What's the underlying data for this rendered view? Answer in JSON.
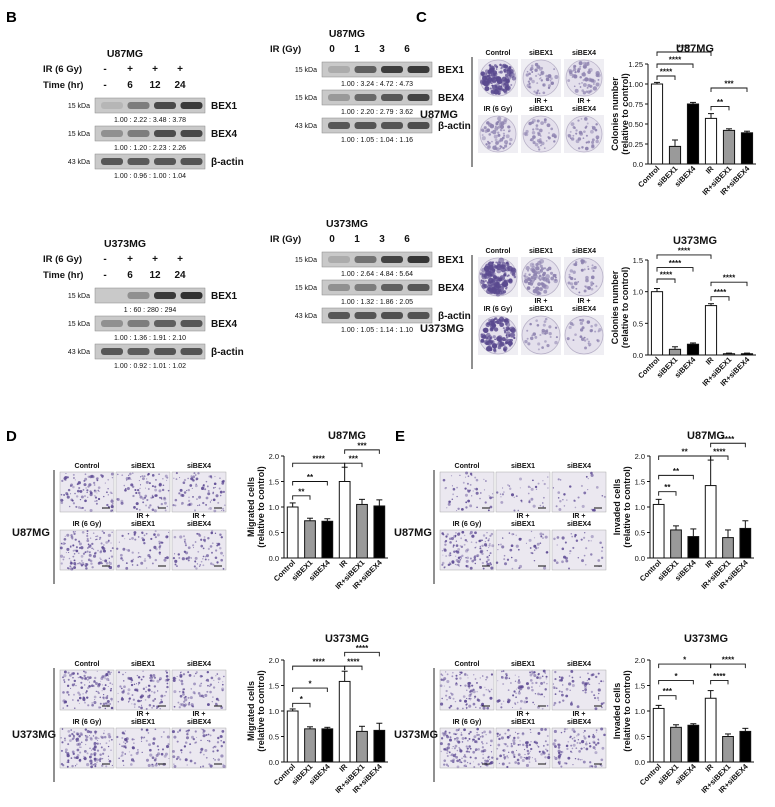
{
  "panel_labels": [
    "B",
    "C",
    "D",
    "E"
  ],
  "blot_panels": [
    {
      "title": "U87MG",
      "row1_label": "IR (6 Gy)",
      "row1_values": [
        "-",
        "+",
        "+",
        "+"
      ],
      "row2_label": "Time (hr)",
      "row2_values": [
        "-",
        "6",
        "12",
        "24"
      ],
      "bands": [
        {
          "kda": "15 kDa",
          "name": "BEX1",
          "quant": "1.00 : 2.22 : 3.48 : 3.78",
          "intensity": [
            0.15,
            0.45,
            0.72,
            0.8
          ]
        },
        {
          "kda": "15 kDa",
          "name": "BEX4",
          "quant": "1.00 : 1.20 : 2.23 : 2.26",
          "intensity": [
            0.35,
            0.45,
            0.7,
            0.72
          ]
        },
        {
          "kda": "43 kDa",
          "name": "β-actin",
          "quant": "1.00 : 0.96 : 1.00 : 1.04",
          "intensity": [
            0.65,
            0.63,
            0.65,
            0.66
          ]
        }
      ]
    },
    {
      "title": "U87MG",
      "row1_label": "IR (Gy)",
      "row1_values": [
        "0",
        "1",
        "3",
        "6"
      ],
      "bands": [
        {
          "kda": "15 kDa",
          "name": "BEX1",
          "quant": "1.00 : 3.24 : 4.72 : 4.73",
          "intensity": [
            0.2,
            0.6,
            0.78,
            0.8
          ]
        },
        {
          "kda": "15 kDa",
          "name": "BEX4",
          "quant": "1.00 : 2.20 : 2.79 : 3.62",
          "intensity": [
            0.3,
            0.55,
            0.65,
            0.75
          ]
        },
        {
          "kda": "43 kDa",
          "name": "β-actin",
          "quant": "1.00 : 1.05 : 1.04 : 1.16",
          "intensity": [
            0.65,
            0.66,
            0.66,
            0.7
          ]
        }
      ]
    },
    {
      "title": "U373MG",
      "row1_label": "IR (6 Gy)",
      "row1_values": [
        "-",
        "+",
        "+",
        "+"
      ],
      "row2_label": "Time (hr)",
      "row2_values": [
        "-",
        "6",
        "12",
        "24"
      ],
      "bands": [
        {
          "kda": "15 kDa",
          "name": "BEX1",
          "quant": "1   :   60  :  280  :  294",
          "intensity": [
            0.05,
            0.35,
            0.8,
            0.85
          ]
        },
        {
          "kda": "15 kDa",
          "name": "BEX4",
          "quant": "1.00 : 1.36 : 1.91 : 2.10",
          "intensity": [
            0.35,
            0.45,
            0.6,
            0.65
          ]
        },
        {
          "kda": "43 kDa",
          "name": "β-actin",
          "quant": "1.00 : 0.92 : 1.01 : 1.02",
          "intensity": [
            0.65,
            0.62,
            0.66,
            0.66
          ]
        }
      ]
    },
    {
      "title": "U373MG",
      "row1_label": "IR (Gy)",
      "row1_values": [
        "0",
        "1",
        "3",
        "6"
      ],
      "bands": [
        {
          "kda": "15 kDa",
          "name": "BEX1",
          "quant": "1.00 : 2.64 : 4.84 : 5.64",
          "intensity": [
            0.2,
            0.5,
            0.75,
            0.82
          ]
        },
        {
          "kda": "15 kDa",
          "name": "BEX4",
          "quant": "1.00 : 1.32 : 1.86 : 2.05",
          "intensity": [
            0.35,
            0.45,
            0.6,
            0.65
          ]
        },
        {
          "kda": "43 kDa",
          "name": "β-actin",
          "quant": "1.00 : 1.05 : 1.14 : 1.10",
          "intensity": [
            0.65,
            0.66,
            0.68,
            0.67
          ]
        }
      ]
    }
  ],
  "image_grids": [
    {
      "row_label": "U87MG",
      "labels_top": [
        "Control",
        "siBEX1",
        "siBEX4"
      ],
      "labels_bottom": [
        "IR (6 Gy)",
        "IR +\nsiBEX1",
        "IR +\nsiBEX4"
      ],
      "kind": "colony",
      "density": [
        0.9,
        0.25,
        0.4,
        0.4,
        0.22,
        0.2
      ]
    },
    {
      "row_label": "U373MG",
      "labels_top": [
        "Control",
        "siBEX1",
        "siBEX4"
      ],
      "labels_bottom": [
        "IR (6 Gy)",
        "IR +\nsiBEX1",
        "IR +\nsiBEX4"
      ],
      "kind": "colony",
      "density": [
        0.9,
        0.5,
        0.2,
        0.75,
        0.12,
        0.1
      ]
    },
    {
      "row_label": "U87MG",
      "labels_top": [
        "Control",
        "siBEX1",
        "siBEX4"
      ],
      "labels_bottom": [
        "IR (6 Gy)",
        "IR +\nsiBEX1",
        "IR +\nsiBEX4"
      ],
      "kind": "cells",
      "density": [
        0.55,
        0.45,
        0.45,
        0.75,
        0.35,
        0.4
      ]
    },
    {
      "row_label": "U373MG",
      "labels_top": [
        "Control",
        "siBEX1",
        "siBEX4"
      ],
      "labels_bottom": [
        "IR (6 Gy)",
        "IR +\nsiBEX1",
        "IR +\nsiBEX4"
      ],
      "kind": "cells",
      "density": [
        0.7,
        0.55,
        0.45,
        0.8,
        0.4,
        0.4
      ]
    },
    {
      "row_label": "U87MG",
      "labels_top": [
        "Control",
        "siBEX1",
        "siBEX4"
      ],
      "labels_bottom": [
        "IR (6 Gy)",
        "IR +\nsiBEX1",
        "IR +\nsiBEX4"
      ],
      "kind": "cells",
      "density": [
        0.25,
        0.15,
        0.1,
        0.7,
        0.2,
        0.15
      ]
    },
    {
      "row_label": "U373MG",
      "labels_top": [
        "Control",
        "siBEX1",
        "siBEX4"
      ],
      "labels_bottom": [
        "IR (6 Gy)",
        "IR +\nsiBEX1",
        "IR +\nsiBEX4"
      ],
      "kind": "cells",
      "density": [
        0.55,
        0.45,
        0.3,
        0.85,
        0.55,
        0.5
      ]
    }
  ],
  "chart_data": [
    {
      "type": "bar",
      "title": "U87MG",
      "ylabel": "Colonies number\n(relative to control)",
      "ylim": [
        0,
        1.25
      ],
      "yticks": [
        "0.0",
        "0.25",
        "0.50",
        "0.75",
        "1.00",
        "1.25"
      ],
      "ytick_values": [
        0,
        0.25,
        0.5,
        0.75,
        1.0,
        1.25
      ],
      "categories": [
        "Control",
        "siBEX1",
        "siBEX4",
        "IR",
        "IR+siBEX1",
        "IR+siBEX4"
      ],
      "values": [
        1.0,
        0.22,
        0.75,
        0.57,
        0.42,
        0.39
      ],
      "errors": [
        0.02,
        0.08,
        0.02,
        0.06,
        0.02,
        0.02
      ],
      "fills": [
        "#ffffff",
        "#9a9a9a",
        "#000000",
        "#ffffff",
        "#9a9a9a",
        "#000000"
      ],
      "significance": [
        {
          "from": 0,
          "to": 1,
          "label": "****",
          "y": 1.1
        },
        {
          "from": 0,
          "to": 2,
          "label": "****",
          "y": 1.25
        },
        {
          "from": 0,
          "to": 3,
          "label": "****",
          "y": 1.4
        },
        {
          "from": 3,
          "to": 4,
          "label": "**",
          "y": 0.72
        },
        {
          "from": 3,
          "to": 5,
          "label": "***",
          "y": 0.95
        }
      ]
    },
    {
      "type": "bar",
      "title": "U373MG",
      "ylabel": "Colonies number\n(relative to control)",
      "ylim": [
        0,
        1.5
      ],
      "yticks": [
        "0.0",
        "0.5",
        "1.0",
        "1.5"
      ],
      "ytick_values": [
        0,
        0.5,
        1.0,
        1.5
      ],
      "categories": [
        "Control",
        "siBEX1",
        "siBEX4",
        "IR",
        "IR+siBEX1",
        "IR+siBEX4"
      ],
      "values": [
        1.0,
        0.09,
        0.17,
        0.78,
        0.02,
        0.02
      ],
      "errors": [
        0.05,
        0.04,
        0.02,
        0.03,
        0.01,
        0.01
      ],
      "fills": [
        "#ffffff",
        "#9a9a9a",
        "#000000",
        "#ffffff",
        "#9a9a9a",
        "#000000"
      ],
      "significance": [
        {
          "from": 0,
          "to": 1,
          "label": "****",
          "y": 1.2
        },
        {
          "from": 0,
          "to": 2,
          "label": "****",
          "y": 1.38
        },
        {
          "from": 0,
          "to": 3,
          "label": "****",
          "y": 1.58
        },
        {
          "from": 3,
          "to": 4,
          "label": "****",
          "y": 0.92
        },
        {
          "from": 3,
          "to": 5,
          "label": "****",
          "y": 1.15
        }
      ]
    },
    {
      "type": "bar",
      "title": "U87MG",
      "ylabel": "Migrated cells\n(relative to control)",
      "ylim": [
        0,
        2.0
      ],
      "yticks": [
        "0.0",
        "0.5",
        "1.0",
        "1.5",
        "2.0"
      ],
      "ytick_values": [
        0,
        0.5,
        1.0,
        1.5,
        2.0
      ],
      "categories": [
        "Control",
        "siBEX1",
        "siBEX4",
        "IR",
        "IR+siBEX1",
        "IR+siBEX4"
      ],
      "values": [
        1.0,
        0.73,
        0.72,
        1.5,
        1.05,
        1.02
      ],
      "errors": [
        0.08,
        0.05,
        0.05,
        0.28,
        0.1,
        0.12
      ],
      "fills": [
        "#ffffff",
        "#9a9a9a",
        "#000000",
        "#ffffff",
        "#9a9a9a",
        "#000000"
      ],
      "significance": [
        {
          "from": 0,
          "to": 1,
          "label": "**",
          "y": 1.22
        },
        {
          "from": 0,
          "to": 2,
          "label": "**",
          "y": 1.5
        },
        {
          "from": 0,
          "to": 3,
          "label": "****",
          "y": 1.86
        },
        {
          "from": 3,
          "to": 4,
          "label": "***",
          "y": 1.86
        },
        {
          "from": 3,
          "to": 5,
          "label": "***",
          "y": 2.12
        }
      ]
    },
    {
      "type": "bar",
      "title": "U373MG",
      "ylabel": "Migrated cells\n(relative to control)",
      "ylim": [
        0,
        2.0
      ],
      "yticks": [
        "0.0",
        "0.5",
        "1.0",
        "1.5",
        "2.0"
      ],
      "ytick_values": [
        0,
        0.5,
        1.0,
        1.5,
        2.0
      ],
      "categories": [
        "Control",
        "siBEX1",
        "siBEX4",
        "IR",
        "IR+siBEX1",
        "IR+siBEX4"
      ],
      "values": [
        1.0,
        0.65,
        0.65,
        1.58,
        0.6,
        0.62
      ],
      "errors": [
        0.04,
        0.04,
        0.03,
        0.2,
        0.1,
        0.14
      ],
      "fills": [
        "#ffffff",
        "#9a9a9a",
        "#000000",
        "#ffffff",
        "#9a9a9a",
        "#000000"
      ],
      "significance": [
        {
          "from": 0,
          "to": 1,
          "label": "*",
          "y": 1.15
        },
        {
          "from": 0,
          "to": 2,
          "label": "*",
          "y": 1.45
        },
        {
          "from": 0,
          "to": 3,
          "label": "****",
          "y": 1.88
        },
        {
          "from": 3,
          "to": 4,
          "label": "****",
          "y": 1.88
        },
        {
          "from": 3,
          "to": 5,
          "label": "****",
          "y": 2.15
        }
      ]
    },
    {
      "type": "bar",
      "title": "U87MG",
      "ylabel": "Invaded cells\n(relative to control)",
      "ylim": [
        0,
        2.0
      ],
      "yticks": [
        "0.0",
        "0.5",
        "1.0",
        "1.5",
        "2.0"
      ],
      "ytick_values": [
        0,
        0.5,
        1.0,
        1.5,
        2.0
      ],
      "categories": [
        "Control",
        "siBEX1",
        "siBEX4",
        "IR",
        "IR+siBEX1",
        "IR+siBEX4"
      ],
      "values": [
        1.05,
        0.55,
        0.42,
        1.42,
        0.4,
        0.58
      ],
      "errors": [
        0.1,
        0.08,
        0.15,
        0.5,
        0.15,
        0.15
      ],
      "fills": [
        "#ffffff",
        "#9a9a9a",
        "#000000",
        "#ffffff",
        "#9a9a9a",
        "#000000"
      ],
      "significance": [
        {
          "from": 0,
          "to": 1,
          "label": "**",
          "y": 1.3
        },
        {
          "from": 0,
          "to": 2,
          "label": "**",
          "y": 1.62
        },
        {
          "from": 0,
          "to": 3,
          "label": "**",
          "y": 2.0
        },
        {
          "from": 3,
          "to": 4,
          "label": "****",
          "y": 2.0
        },
        {
          "from": 3,
          "to": 5,
          "label": "****",
          "y": 2.25
        }
      ]
    },
    {
      "type": "bar",
      "title": "U373MG",
      "ylabel": "Invaded cells\n(relative to control)",
      "ylim": [
        0,
        2.0
      ],
      "yticks": [
        "0.0",
        "0.5",
        "1.0",
        "1.5",
        "2.0"
      ],
      "ytick_values": [
        0,
        0.5,
        1.0,
        1.5,
        2.0
      ],
      "categories": [
        "Control",
        "siBEX1",
        "siBEX4",
        "IR",
        "IR+siBEX1",
        "IR+siBEX4"
      ],
      "values": [
        1.05,
        0.68,
        0.72,
        1.25,
        0.5,
        0.6
      ],
      "errors": [
        0.06,
        0.05,
        0.03,
        0.15,
        0.05,
        0.06
      ],
      "fills": [
        "#ffffff",
        "#9a9a9a",
        "#000000",
        "#ffffff",
        "#9a9a9a",
        "#000000"
      ],
      "significance": [
        {
          "from": 0,
          "to": 1,
          "label": "***",
          "y": 1.3
        },
        {
          "from": 0,
          "to": 2,
          "label": "*",
          "y": 1.6
        },
        {
          "from": 0,
          "to": 3,
          "label": "*",
          "y": 1.92
        },
        {
          "from": 3,
          "to": 4,
          "label": "****",
          "y": 1.6
        },
        {
          "from": 3,
          "to": 5,
          "label": "****",
          "y": 1.92
        }
      ]
    }
  ]
}
